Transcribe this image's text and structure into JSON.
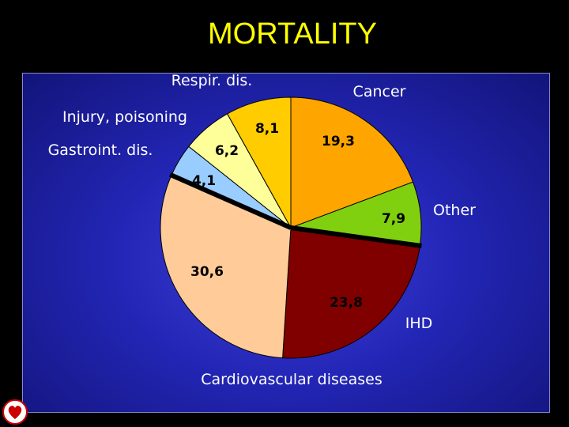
{
  "title": "MORTALITY",
  "chart_data": {
    "type": "pie",
    "title": "MORTALITY",
    "slices": [
      {
        "label": "Cancer",
        "value": 19.3,
        "value_label": "19,3",
        "color": "#ffa500"
      },
      {
        "label": "Other",
        "value": 7.9,
        "value_label": "7,9",
        "color": "#80d010"
      },
      {
        "label": "IHD",
        "value": 23.8,
        "value_label": "23,8",
        "color": "#800000"
      },
      {
        "label": "Cardiovascular diseases",
        "value": 30.6,
        "value_label": "30,6",
        "color": "#ffcc99"
      },
      {
        "label": "Gastroint. dis.",
        "value": 4.1,
        "value_label": "4,1",
        "color": "#99ccff"
      },
      {
        "label": "Injury, poisoning",
        "value": 6.2,
        "value_label": "6,2",
        "color": "#ffff99"
      },
      {
        "label": "Respir. dis.",
        "value": 8.1,
        "value_label": "8,1",
        "color": "#ffcc00"
      }
    ],
    "start_angle_deg": 0,
    "direction": "clockwise",
    "separator_lines_after": [
      "Other",
      "Cardiovascular diseases"
    ],
    "separator_color": "#000000"
  },
  "colors": {
    "background": "#000000",
    "title": "#ffff00",
    "panel": "#2326b6"
  },
  "logo_icon": "heart-logo-icon"
}
